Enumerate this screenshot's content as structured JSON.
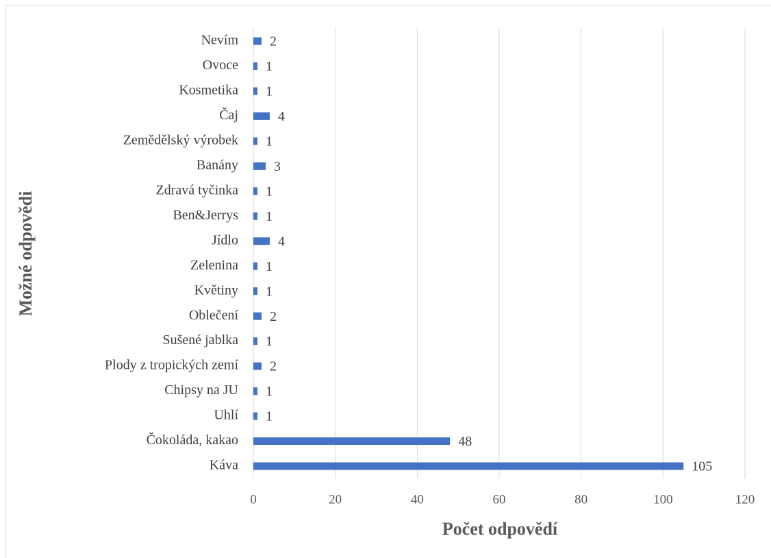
{
  "chart_data": {
    "type": "barh",
    "x_label": "Počet odpovědí",
    "y_label": "Možné odpovědi",
    "categories": [
      "Nevím",
      "Ovoce",
      "Kosmetika",
      "Čaj",
      "Zemědělský výrobek",
      "Banány",
      "Zdravá tyčinka",
      "Ben&Jerrys",
      "Jídlo",
      "Zelenina",
      "Květiny",
      "Oblečení",
      "Sušené jablka",
      "Plody z tropických zemí",
      "Chipsy na JU",
      "Uhlí",
      "Čokoláda, kakao",
      "Káva"
    ],
    "values": [
      2,
      1,
      1,
      4,
      1,
      3,
      1,
      1,
      4,
      1,
      1,
      2,
      1,
      2,
      1,
      1,
      48,
      105
    ],
    "color": "#4472c4",
    "xlim": [
      0,
      120
    ],
    "xticks": [
      0,
      20,
      40,
      60,
      80,
      100,
      120
    ],
    "grid": true,
    "data_labels": true
  }
}
